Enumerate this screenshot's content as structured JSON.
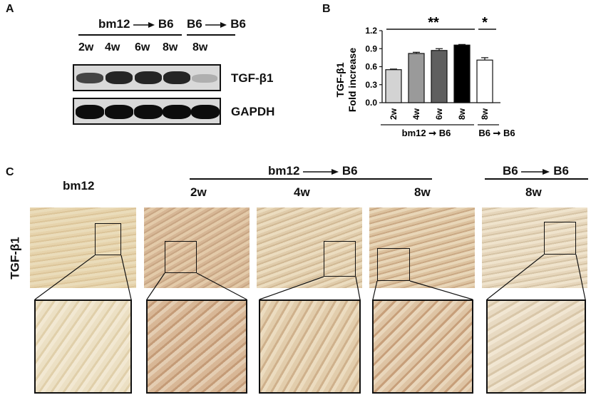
{
  "panels": {
    "a": "A",
    "b": "B",
    "c": "C"
  },
  "panel_a": {
    "group_bm12": "bm12",
    "group_bm12_target": "B6",
    "group_b6": "B6",
    "group_b6_target": "B6",
    "lanes": [
      "2w",
      "4w",
      "6w",
      "8w",
      "8w"
    ],
    "row_labels": [
      "TGF-β1",
      "GAPDH"
    ],
    "tgf_band_intensity": [
      0.75,
      0.9,
      0.9,
      0.9,
      0.25
    ]
  },
  "chart_data": {
    "type": "bar",
    "categories": [
      "2w",
      "4w",
      "6w",
      "8w",
      "8w"
    ],
    "values": [
      0.55,
      0.82,
      0.87,
      0.96,
      0.71
    ],
    "errors": [
      0.01,
      0.02,
      0.03,
      0.01,
      0.04
    ],
    "bar_colors": [
      "#d3d3d3",
      "#9a9a9a",
      "#5f5f5f",
      "#000000",
      "#ffffff"
    ],
    "ylabel_line1": "TGF-β1",
    "ylabel_line2": "Fold increase",
    "yticks": [
      "0.0",
      "0.3",
      "0.6",
      "0.9",
      "1.2"
    ],
    "ylim": [
      0,
      1.2
    ],
    "group_labels": [
      "bm12 ➞ B6",
      "B6 ➞ B6"
    ],
    "significance": [
      "**",
      "*"
    ]
  },
  "panel_c": {
    "row_label": "TGF-β1",
    "col_bm12": "bm12",
    "group_bm12": "bm12",
    "group_bm12_target": "B6",
    "group_b6": "B6",
    "group_b6_target": "B6",
    "col_labels": [
      "2w",
      "4w",
      "8w",
      "8w"
    ]
  }
}
